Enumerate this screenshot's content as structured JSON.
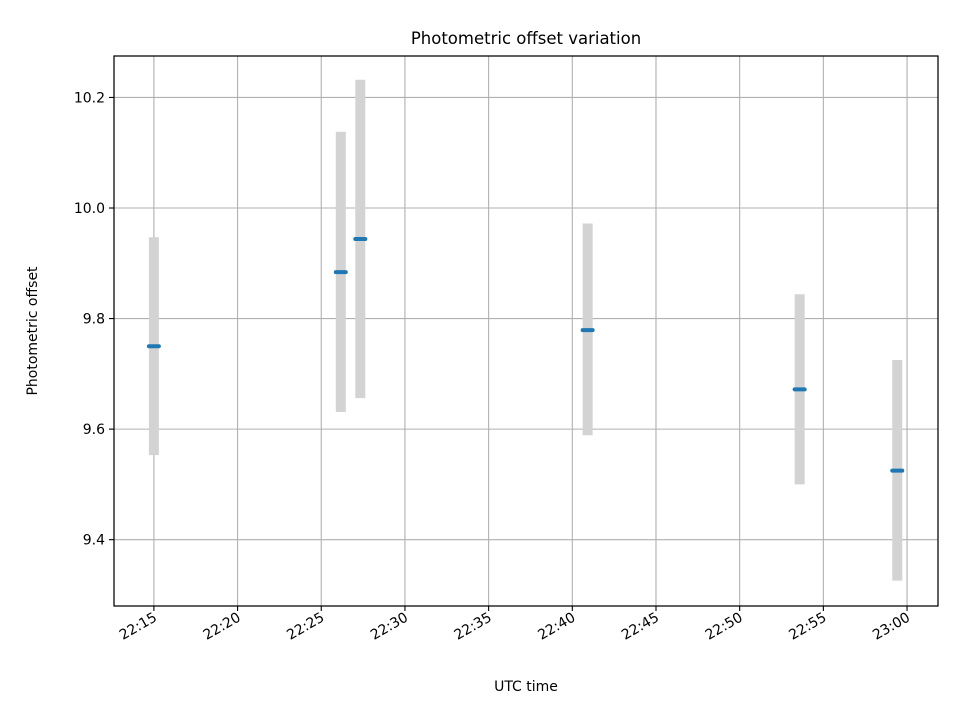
{
  "chart_data": {
    "type": "scatter",
    "title": "Photometric offset variation",
    "xlabel": "UTC time",
    "ylabel": "Photometric offset",
    "x_tick_labels": [
      "22:15",
      "22:20",
      "22:25",
      "22:30",
      "22:35",
      "22:40",
      "22:45",
      "22:50",
      "22:55",
      "23:00"
    ],
    "y_tick_labels": [
      "9.4",
      "9.6",
      "9.8",
      "10.0",
      "10.2"
    ],
    "y_ticks": [
      9.4,
      9.6,
      9.8,
      10.0,
      10.2
    ],
    "xlim": [
      "22:12:37",
      "23:01:51"
    ],
    "ylim": [
      9.28,
      10.275
    ],
    "grid": true,
    "series": [
      {
        "points": [
          {
            "x": "22:15:00",
            "y": 9.75,
            "err_low": 9.553,
            "err_high": 9.947
          },
          {
            "x": "22:26:10",
            "y": 9.884,
            "err_low": 9.631,
            "err_high": 10.138
          },
          {
            "x": "22:27:20",
            "y": 9.944,
            "err_low": 9.656,
            "err_high": 10.232
          },
          {
            "x": "22:40:55",
            "y": 9.779,
            "err_low": 9.589,
            "err_high": 9.972
          },
          {
            "x": "22:53:35",
            "y": 9.672,
            "err_low": 9.5,
            "err_high": 9.844
          },
          {
            "x": "22:59:25",
            "y": 9.525,
            "err_low": 9.326,
            "err_high": 9.725
          }
        ]
      }
    ]
  },
  "colors": {
    "marker": "#1f77b4",
    "errorbar": "#d3d3d3",
    "grid": "#b0b0b0",
    "axes": "#000000"
  }
}
